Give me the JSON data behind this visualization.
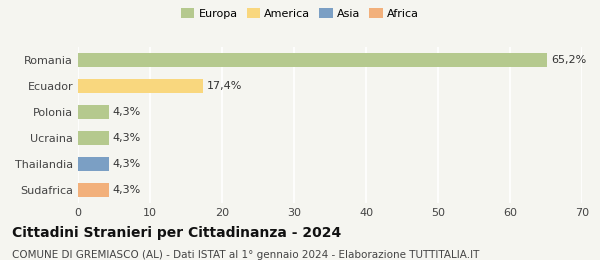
{
  "categories": [
    "Romania",
    "Ecuador",
    "Polonia",
    "Ucraina",
    "Thailandia",
    "Sudafrica"
  ],
  "values": [
    65.2,
    17.4,
    4.3,
    4.3,
    4.3,
    4.3
  ],
  "labels": [
    "65,2%",
    "17,4%",
    "4,3%",
    "4,3%",
    "4,3%",
    "4,3%"
  ],
  "bar_colors": [
    "#b5c98e",
    "#f9d77e",
    "#b5c98e",
    "#b5c98e",
    "#7b9fc4",
    "#f2b07b"
  ],
  "legend": [
    {
      "label": "Europa",
      "color": "#b5c98e"
    },
    {
      "label": "America",
      "color": "#f9d77e"
    },
    {
      "label": "Asia",
      "color": "#7b9fc4"
    },
    {
      "label": "Africa",
      "color": "#f2b07b"
    }
  ],
  "xlim": [
    0,
    70
  ],
  "xticks": [
    0,
    10,
    20,
    30,
    40,
    50,
    60,
    70
  ],
  "title": "Cittadini Stranieri per Cittadinanza - 2024",
  "subtitle": "COMUNE DI GREMIASCO (AL) - Dati ISTAT al 1° gennaio 2024 - Elaborazione TUTTITALIA.IT",
  "background_color": "#f5f5f0",
  "grid_color": "#ffffff",
  "title_fontsize": 10,
  "subtitle_fontsize": 7.5,
  "label_fontsize": 8,
  "tick_fontsize": 8
}
